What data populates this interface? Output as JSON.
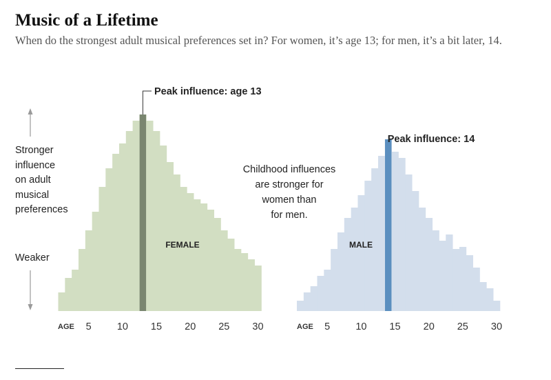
{
  "title": "Music of a Lifetime",
  "subtitle": "When do the strongest adult musical preferences set in? For women, it’s age 13; for men, it’s a bit later, 14.",
  "y_annotation": {
    "stronger_lines": [
      "Stronger",
      "influence",
      "on adult",
      "musical",
      "preferences"
    ],
    "weaker": "Weaker"
  },
  "middle_note_lines": [
    "Childhood influences",
    "are stronger for",
    "women than",
    "for men."
  ],
  "axis_label": "AGE",
  "colors": {
    "female_fill": "#d2dec2",
    "female_peak": "#7a8670",
    "male_fill": "#d3deec",
    "male_peak": "#5b8fbf",
    "text": "#222222",
    "axis_text": "#333333"
  },
  "chart_data": [
    {
      "type": "bar",
      "panel_label": "FEMALE",
      "peak_label": "Peak influence: age 13",
      "peak_age": 13,
      "x": [
        1,
        2,
        3,
        4,
        5,
        6,
        7,
        8,
        9,
        10,
        11,
        12,
        13,
        14,
        15,
        16,
        17,
        18,
        19,
        20,
        21,
        22,
        23,
        24,
        25,
        26,
        27,
        28,
        29,
        30
      ],
      "values": [
        0.09,
        0.16,
        0.2,
        0.3,
        0.39,
        0.48,
        0.6,
        0.69,
        0.76,
        0.81,
        0.87,
        0.92,
        0.95,
        0.92,
        0.87,
        0.8,
        0.72,
        0.66,
        0.6,
        0.57,
        0.54,
        0.52,
        0.49,
        0.45,
        0.39,
        0.35,
        0.3,
        0.28,
        0.25,
        0.22
      ],
      "xticks": [
        5,
        10,
        15,
        20,
        25,
        30
      ],
      "ylim": [
        0,
        1
      ],
      "ylabel": "Stronger influence on adult musical preferences"
    },
    {
      "type": "bar",
      "panel_label": "MALE",
      "peak_label": "Peak influence: 14",
      "peak_age": 14,
      "x": [
        1,
        2,
        3,
        4,
        5,
        6,
        7,
        8,
        9,
        10,
        11,
        12,
        13,
        14,
        15,
        16,
        17,
        18,
        19,
        20,
        21,
        22,
        23,
        24,
        25,
        26,
        27,
        28,
        29,
        30
      ],
      "values": [
        0.05,
        0.09,
        0.12,
        0.17,
        0.2,
        0.3,
        0.38,
        0.45,
        0.5,
        0.56,
        0.63,
        0.69,
        0.75,
        0.83,
        0.77,
        0.74,
        0.66,
        0.58,
        0.5,
        0.45,
        0.39,
        0.34,
        0.37,
        0.3,
        0.31,
        0.27,
        0.21,
        0.14,
        0.11,
        0.05
      ],
      "xticks": [
        5,
        10,
        15,
        20,
        25,
        30
      ],
      "ylim": [
        0,
        1
      ]
    }
  ]
}
